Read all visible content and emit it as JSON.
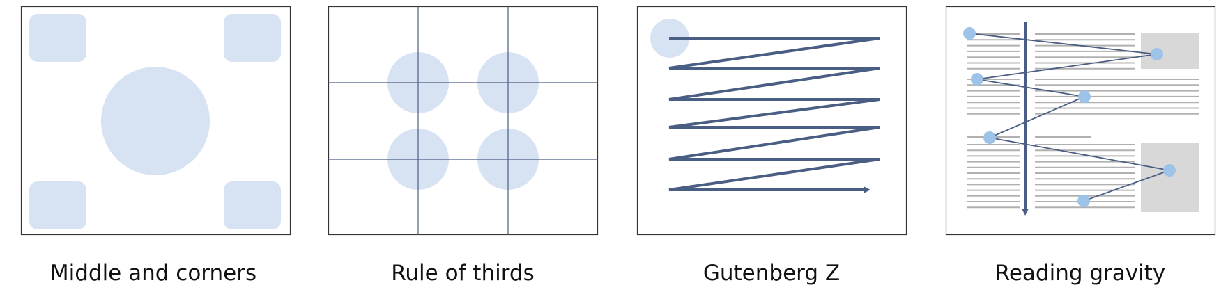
{
  "colors": {
    "accent_fill": "#d7e2f2",
    "line": "#4a5e83",
    "dot": "#9ec3e8",
    "text_lines": "#b0b0b0",
    "image_block": "#d8d8d8",
    "frame": "#333333"
  },
  "panels": [
    {
      "id": "middle-corners",
      "caption": "Middle and corners"
    },
    {
      "id": "rule-of-thirds",
      "caption": "Rule of thirds"
    },
    {
      "id": "gutenberg-z",
      "caption": "Gutenberg Z"
    },
    {
      "id": "reading-gravity",
      "caption": "Reading gravity"
    }
  ]
}
